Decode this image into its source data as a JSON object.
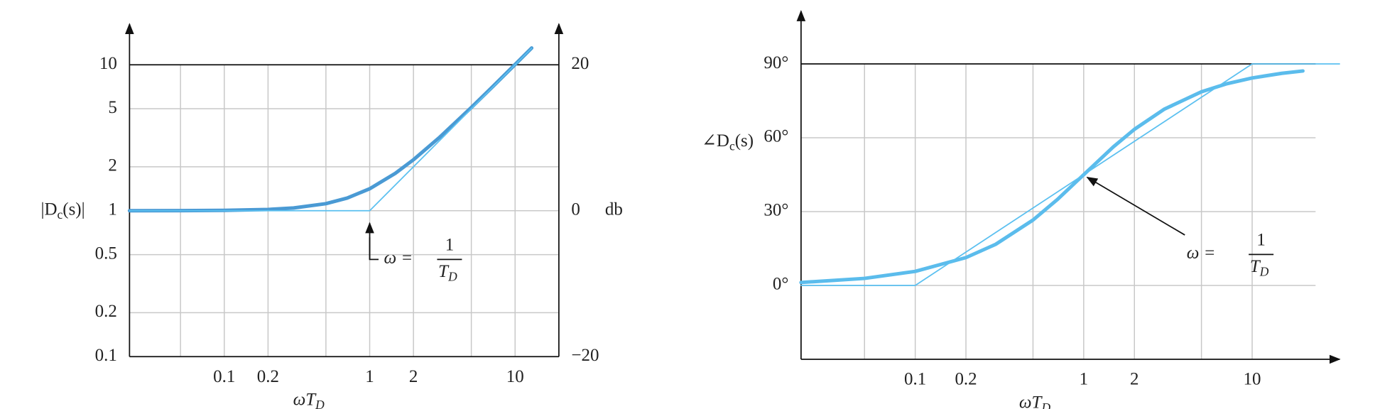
{
  "chart_data": [
    {
      "type": "line",
      "xlog": true,
      "ylog": true,
      "xlim": [
        0.0223,
        20
      ],
      "ylim": [
        0.1,
        18
      ],
      "xticks": [
        0.1,
        0.2,
        1,
        2,
        10
      ],
      "xgrid": [
        0.05,
        0.1,
        0.2,
        0.5,
        1,
        2,
        5,
        10
      ],
      "yticks": [
        0.1,
        0.2,
        0.5,
        1,
        2,
        5,
        10
      ],
      "y2lim": [
        -20,
        25.1
      ],
      "y2ticks": [
        20,
        0,
        {
          "value": -20,
          "label": "−20"
        }
      ],
      "y2label": "db",
      "xlabel": [
        "ωT",
        "D"
      ],
      "ylabel": [
        "|D",
        "c",
        "(s)|"
      ],
      "grid": true,
      "series": [
        {
          "color": "#4a9ad4",
          "x": [
            0.0223,
            0.05,
            0.1,
            0.2,
            0.3,
            0.5,
            0.7,
            1,
            1.5,
            2,
            3,
            5,
            7,
            10,
            13
          ],
          "values": [
            1.0002,
            1.001,
            1.005,
            1.02,
            1.044,
            1.118,
            1.221,
            1.414,
            1.803,
            2.236,
            3.162,
            5.099,
            7.071,
            10.05,
            13.04
          ]
        },
        {
          "color": "#5bc0f0",
          "x": [
            0.0223,
            1,
            13
          ],
          "values": [
            1,
            1,
            13
          ]
        }
      ],
      "annotation": {
        "x": 1,
        "y": 1,
        "text": "ω =",
        "numerator": "1",
        "denominator": [
          "T",
          "D"
        ]
      }
    },
    {
      "type": "line",
      "xlog": true,
      "ylog": false,
      "xlim": [
        0.021,
        33
      ],
      "ylim": [
        -30,
        110
      ],
      "xticks": [
        0.1,
        0.2,
        1,
        2,
        10
      ],
      "xgrid": [
        0.05,
        0.1,
        0.2,
        0.5,
        1,
        2,
        5,
        10
      ],
      "yticks": [
        {
          "value": 0,
          "label": "0°"
        },
        {
          "value": 30,
          "label": "30°"
        },
        {
          "value": 60,
          "label": "60°"
        },
        {
          "value": 90,
          "label": "90°"
        }
      ],
      "xlabel": [
        "ωT",
        "D"
      ],
      "ylabel": [
        "∠D",
        "c",
        "(s)"
      ],
      "grid": true,
      "series": [
        {
          "color": "#5bbcec",
          "x": [
            0.021,
            0.05,
            0.1,
            0.2,
            0.3,
            0.5,
            0.7,
            1,
            1.5,
            2,
            3,
            5,
            7,
            10,
            15,
            20
          ],
          "values": [
            1.2,
            2.86,
            5.71,
            11.31,
            16.7,
            26.57,
            34.99,
            45,
            56.31,
            63.43,
            71.57,
            78.69,
            81.87,
            84.29,
            86.19,
            87.14
          ]
        },
        {
          "color": "#5bc0f0",
          "x": [
            0.021,
            0.1,
            10,
            33
          ],
          "values": [
            0,
            0,
            90,
            90
          ]
        }
      ],
      "annotation": {
        "x": 1,
        "y": 45,
        "text": "ω =",
        "numerator": "1",
        "denominator": [
          "T",
          "D"
        ]
      }
    }
  ]
}
